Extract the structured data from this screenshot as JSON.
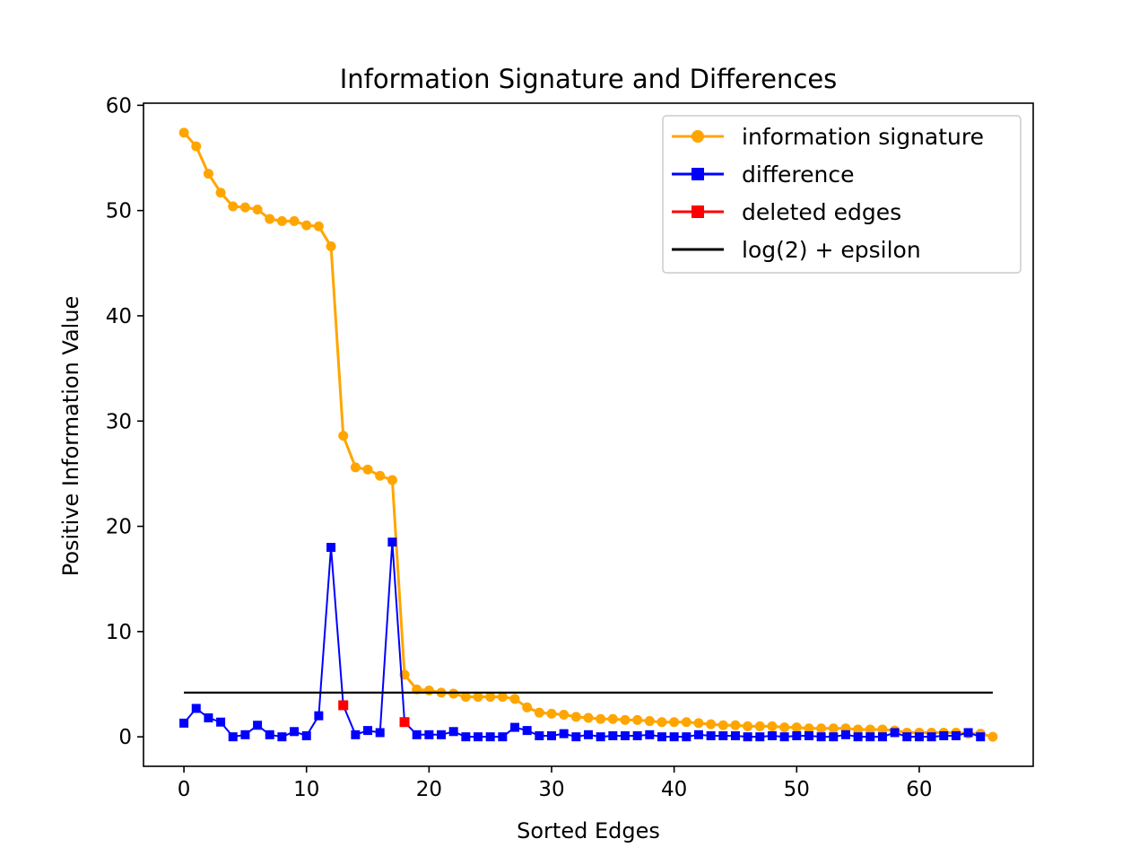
{
  "chart_data": {
    "type": "line",
    "title": "Information Signature and Differences",
    "xlabel": "Sorted Edges",
    "ylabel": "Positive Information Value",
    "xlim": [
      -3.3,
      69.3
    ],
    "ylim": [
      -2.8,
      60.2
    ],
    "xticks": [
      0,
      10,
      20,
      30,
      40,
      50,
      60
    ],
    "yticks": [
      0,
      10,
      20,
      30,
      40,
      50,
      60
    ],
    "grid": false,
    "legend_position": "top-right",
    "series": [
      {
        "name": "information signature",
        "color": "#ffa500",
        "marker": "circle",
        "x": [
          0,
          1,
          2,
          3,
          4,
          5,
          6,
          7,
          8,
          9,
          10,
          11,
          12,
          13,
          14,
          15,
          16,
          17,
          18,
          19,
          20,
          21,
          22,
          23,
          24,
          25,
          26,
          27,
          28,
          29,
          30,
          31,
          32,
          33,
          34,
          35,
          36,
          37,
          38,
          39,
          40,
          41,
          42,
          43,
          44,
          45,
          46,
          47,
          48,
          49,
          50,
          51,
          52,
          53,
          54,
          55,
          56,
          57,
          58,
          59,
          60,
          61,
          62,
          63,
          64,
          65,
          66
        ],
        "values": [
          57.4,
          56.1,
          53.5,
          51.7,
          50.4,
          50.3,
          50.1,
          49.2,
          49.0,
          49.0,
          48.6,
          48.5,
          46.6,
          28.6,
          25.6,
          25.4,
          24.8,
          24.4,
          5.9,
          4.5,
          4.4,
          4.2,
          4.1,
          3.8,
          3.8,
          3.8,
          3.8,
          3.6,
          2.8,
          2.3,
          2.2,
          2.1,
          1.9,
          1.8,
          1.7,
          1.7,
          1.6,
          1.6,
          1.5,
          1.4,
          1.4,
          1.4,
          1.3,
          1.2,
          1.1,
          1.1,
          1.0,
          1.0,
          1.0,
          0.9,
          0.9,
          0.8,
          0.8,
          0.8,
          0.8,
          0.7,
          0.7,
          0.7,
          0.6,
          0.4,
          0.4,
          0.4,
          0.4,
          0.4,
          0.3,
          0.3,
          0.0
        ]
      },
      {
        "name": "difference",
        "color": "#0000ff",
        "marker": "square",
        "x": [
          0,
          1,
          2,
          3,
          4,
          5,
          6,
          7,
          8,
          9,
          10,
          11,
          12,
          13,
          14,
          15,
          16,
          17,
          18,
          19,
          20,
          21,
          22,
          23,
          24,
          25,
          26,
          27,
          28,
          29,
          30,
          31,
          32,
          33,
          34,
          35,
          36,
          37,
          38,
          39,
          40,
          41,
          42,
          43,
          44,
          45,
          46,
          47,
          48,
          49,
          50,
          51,
          52,
          53,
          54,
          55,
          56,
          57,
          58,
          59,
          60,
          61,
          62,
          63,
          64,
          65
        ],
        "values": [
          1.3,
          2.7,
          1.8,
          1.4,
          0.0,
          0.2,
          1.1,
          0.2,
          0.0,
          0.5,
          0.1,
          2.0,
          18.0,
          3.0,
          0.2,
          0.6,
          0.4,
          18.5,
          1.4,
          0.2,
          0.2,
          0.2,
          0.5,
          0.0,
          0.0,
          0.0,
          0.0,
          0.9,
          0.6,
          0.1,
          0.1,
          0.3,
          0.0,
          0.2,
          0.0,
          0.1,
          0.1,
          0.1,
          0.2,
          0.0,
          0.0,
          0.0,
          0.2,
          0.1,
          0.1,
          0.1,
          0.0,
          0.0,
          0.1,
          0.0,
          0.1,
          0.1,
          0.0,
          0.0,
          0.2,
          0.0,
          0.0,
          0.0,
          0.4,
          0.0,
          0.0,
          0.0,
          0.1,
          0.1,
          0.4,
          0.0
        ]
      },
      {
        "name": "deleted edges",
        "color": "#ff0000",
        "marker": "square",
        "x": [
          13,
          18
        ],
        "values": [
          3.0,
          1.4
        ]
      },
      {
        "name": "log(2) + epsilon",
        "color": "#000000",
        "marker": "none",
        "x": [
          0,
          66
        ],
        "values": [
          4.2,
          4.2
        ]
      }
    ]
  }
}
